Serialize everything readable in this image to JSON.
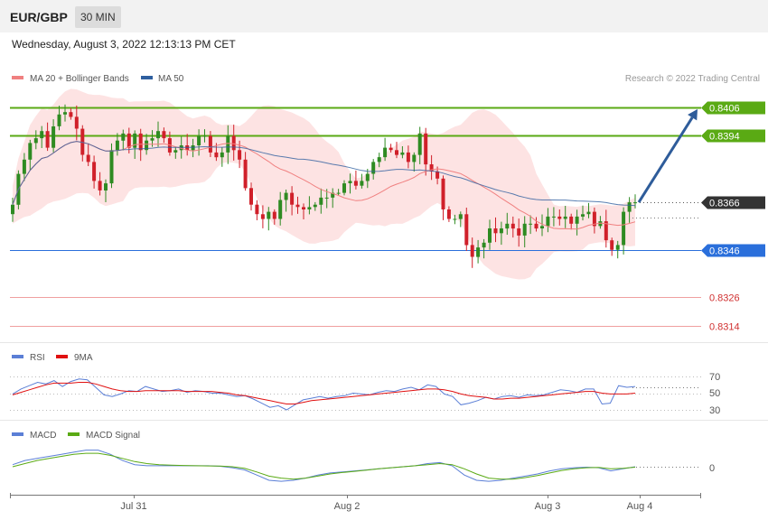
{
  "header": {
    "symbol": "EUR/GBP",
    "timeframe": "30 MIN",
    "datetime": "Wednesday, August 3, 2022 12:13:13 PM CET"
  },
  "legend_main": [
    {
      "label": "MA 20 + Bollinger Bands",
      "color": "#f08080"
    },
    {
      "label": "MA 50",
      "color": "#2f5f9f"
    }
  ],
  "copyright": "Research © 2022 Trading Central",
  "colors": {
    "up": "#2e8b22",
    "down": "#d0202a",
    "band_fill": "#fde3e3",
    "resistance": "#5aaa14",
    "support": "#2a6fdb",
    "target": "#d03030",
    "current": "#333333",
    "arrow": "#2e5c9a",
    "rsi": "#5b7fd6",
    "rsi_ma": "#e01010",
    "macd": "#5b7fd6",
    "macd_signal": "#5aaa14"
  },
  "levels": [
    {
      "label": "0.8406",
      "value": 0.8406,
      "kind": "resistance"
    },
    {
      "label": "0.8394",
      "value": 0.8394,
      "kind": "resistance"
    },
    {
      "label": "0.8366",
      "value": 0.8366,
      "kind": "current"
    },
    {
      "label": "0.8346",
      "value": 0.8346,
      "kind": "support"
    },
    {
      "label": "0.8326",
      "value": 0.8326,
      "kind": "target"
    },
    {
      "label": "0.8314",
      "value": 0.8314,
      "kind": "target"
    }
  ],
  "rsi": {
    "legend": [
      {
        "label": "RSI",
        "color": "#5b7fd6"
      },
      {
        "label": "9MA",
        "color": "#e01010"
      }
    ],
    "levels": [
      "70",
      "50",
      "30"
    ]
  },
  "macd": {
    "legend": [
      {
        "label": "MACD",
        "color": "#5b7fd6"
      },
      {
        "label": "MACD Signal",
        "color": "#5aaa14"
      }
    ],
    "zero_label": "0"
  },
  "chart_data": [
    {
      "type": "candlestick",
      "title": "EUR/GBP 30 MIN",
      "ylim": [
        0.8309,
        0.8417
      ],
      "xticks": [
        "Jul 31",
        "Aug 2",
        "Aug 3",
        "Aug 4"
      ],
      "close": [
        0.8365,
        0.8378,
        0.8384,
        0.8391,
        0.8393,
        0.8396,
        0.8389,
        0.8398,
        0.8403,
        0.8404,
        0.8402,
        0.8397,
        0.8386,
        0.8383,
        0.8375,
        0.8371,
        0.8374,
        0.8388,
        0.8392,
        0.8395,
        0.8389,
        0.8395,
        0.8388,
        0.8392,
        0.8393,
        0.8396,
        0.8393,
        0.8387,
        0.8388,
        0.839,
        0.8388,
        0.839,
        0.8394,
        0.8394,
        0.8387,
        0.8385,
        0.8387,
        0.8394,
        0.8388,
        0.8384,
        0.8372,
        0.8365,
        0.8361,
        0.8359,
        0.8362,
        0.8359,
        0.8367,
        0.837,
        0.8365,
        0.8364,
        0.8363,
        0.8364,
        0.8365,
        0.8368,
        0.8368,
        0.837,
        0.837,
        0.8374,
        0.8375,
        0.8373,
        0.8375,
        0.8378,
        0.8383,
        0.8385,
        0.8389,
        0.8388,
        0.8386,
        0.8387,
        0.8383,
        0.8386,
        0.8395,
        0.8382,
        0.8379,
        0.8376,
        0.8363,
        0.8359,
        0.8359,
        0.8361,
        0.8348,
        0.8343,
        0.8347,
        0.8349,
        0.8355,
        0.8353,
        0.8355,
        0.8357,
        0.8355,
        0.8352,
        0.8357,
        0.8357,
        0.8355,
        0.8356,
        0.836,
        0.836,
        0.8359,
        0.836,
        0.8357,
        0.836,
        0.8361,
        0.8362,
        0.8356,
        0.8358,
        0.835,
        0.8346,
        0.8348,
        0.8362,
        0.8366,
        0.8366
      ],
      "levels": [
        0.8406,
        0.8394,
        0.8366,
        0.8346,
        0.8326,
        0.8314
      ]
    },
    {
      "type": "line",
      "title": "RSI",
      "ylim": [
        20,
        80
      ],
      "series": [
        {
          "name": "RSI",
          "values": [
            49,
            55,
            59,
            63,
            61,
            65,
            58,
            64,
            67,
            66,
            57,
            48,
            46,
            49,
            53,
            52,
            58,
            55,
            52,
            53,
            55,
            51,
            53,
            52,
            50,
            50,
            48,
            46,
            47,
            43,
            38,
            33,
            35,
            30,
            36,
            42,
            44,
            46,
            44,
            46,
            47,
            50,
            49,
            48,
            51,
            53,
            52,
            55,
            57,
            54,
            60,
            58,
            49,
            46,
            36,
            38,
            41,
            45,
            43,
            46,
            47,
            45,
            48,
            47,
            48,
            51,
            54,
            53,
            51,
            55,
            55,
            37,
            38,
            59,
            57,
            58
          ]
        },
        {
          "name": "9MA",
          "values": [
            48,
            51,
            54,
            57,
            60,
            62,
            62,
            62,
            63,
            63,
            61,
            58,
            55,
            53,
            52,
            52,
            53,
            53,
            53,
            53,
            53,
            52,
            52,
            52,
            52,
            51,
            50,
            48,
            47,
            45,
            43,
            41,
            39,
            37,
            37,
            39,
            41,
            42,
            43,
            44,
            45,
            46,
            47,
            48,
            49,
            50,
            51,
            52,
            53,
            54,
            55,
            55,
            54,
            52,
            49,
            47,
            46,
            45,
            43,
            43,
            44,
            44,
            45,
            46,
            47,
            48,
            49,
            50,
            51,
            52,
            52,
            50,
            49,
            49,
            49,
            50
          ]
        }
      ]
    },
    {
      "type": "line",
      "title": "MACD",
      "ylim": [
        -1,
        1
      ],
      "series": [
        {
          "name": "MACD",
          "values": [
            0.1,
            0.3,
            0.4,
            0.5,
            0.6,
            0.7,
            0.8,
            0.8,
            0.6,
            0.3,
            0.1,
            0.05,
            0.05,
            0.05,
            0.05,
            0.05,
            0.05,
            0.02,
            -0.05,
            -0.15,
            -0.4,
            -0.65,
            -0.7,
            -0.65,
            -0.55,
            -0.4,
            -0.3,
            -0.25,
            -0.2,
            -0.15,
            -0.1,
            -0.05,
            0.0,
            0.05,
            0.15,
            0.2,
            0.05,
            -0.4,
            -0.65,
            -0.7,
            -0.65,
            -0.55,
            -0.45,
            -0.35,
            -0.2,
            -0.1,
            -0.05,
            -0.02,
            -0.05,
            -0.2,
            -0.1,
            0.0
          ]
        },
        {
          "name": "MACD Signal",
          "values": [
            0.0,
            0.15,
            0.3,
            0.4,
            0.5,
            0.6,
            0.65,
            0.65,
            0.55,
            0.4,
            0.25,
            0.15,
            0.1,
            0.08,
            0.06,
            0.05,
            0.04,
            0.03,
            0.0,
            -0.08,
            -0.25,
            -0.45,
            -0.55,
            -0.6,
            -0.55,
            -0.45,
            -0.35,
            -0.28,
            -0.22,
            -0.16,
            -0.1,
            -0.05,
            0.0,
            0.05,
            0.1,
            0.15,
            0.1,
            -0.1,
            -0.35,
            -0.55,
            -0.6,
            -0.6,
            -0.52,
            -0.42,
            -0.3,
            -0.18,
            -0.1,
            -0.05,
            -0.03,
            -0.1,
            -0.08,
            -0.02
          ]
        }
      ]
    }
  ]
}
